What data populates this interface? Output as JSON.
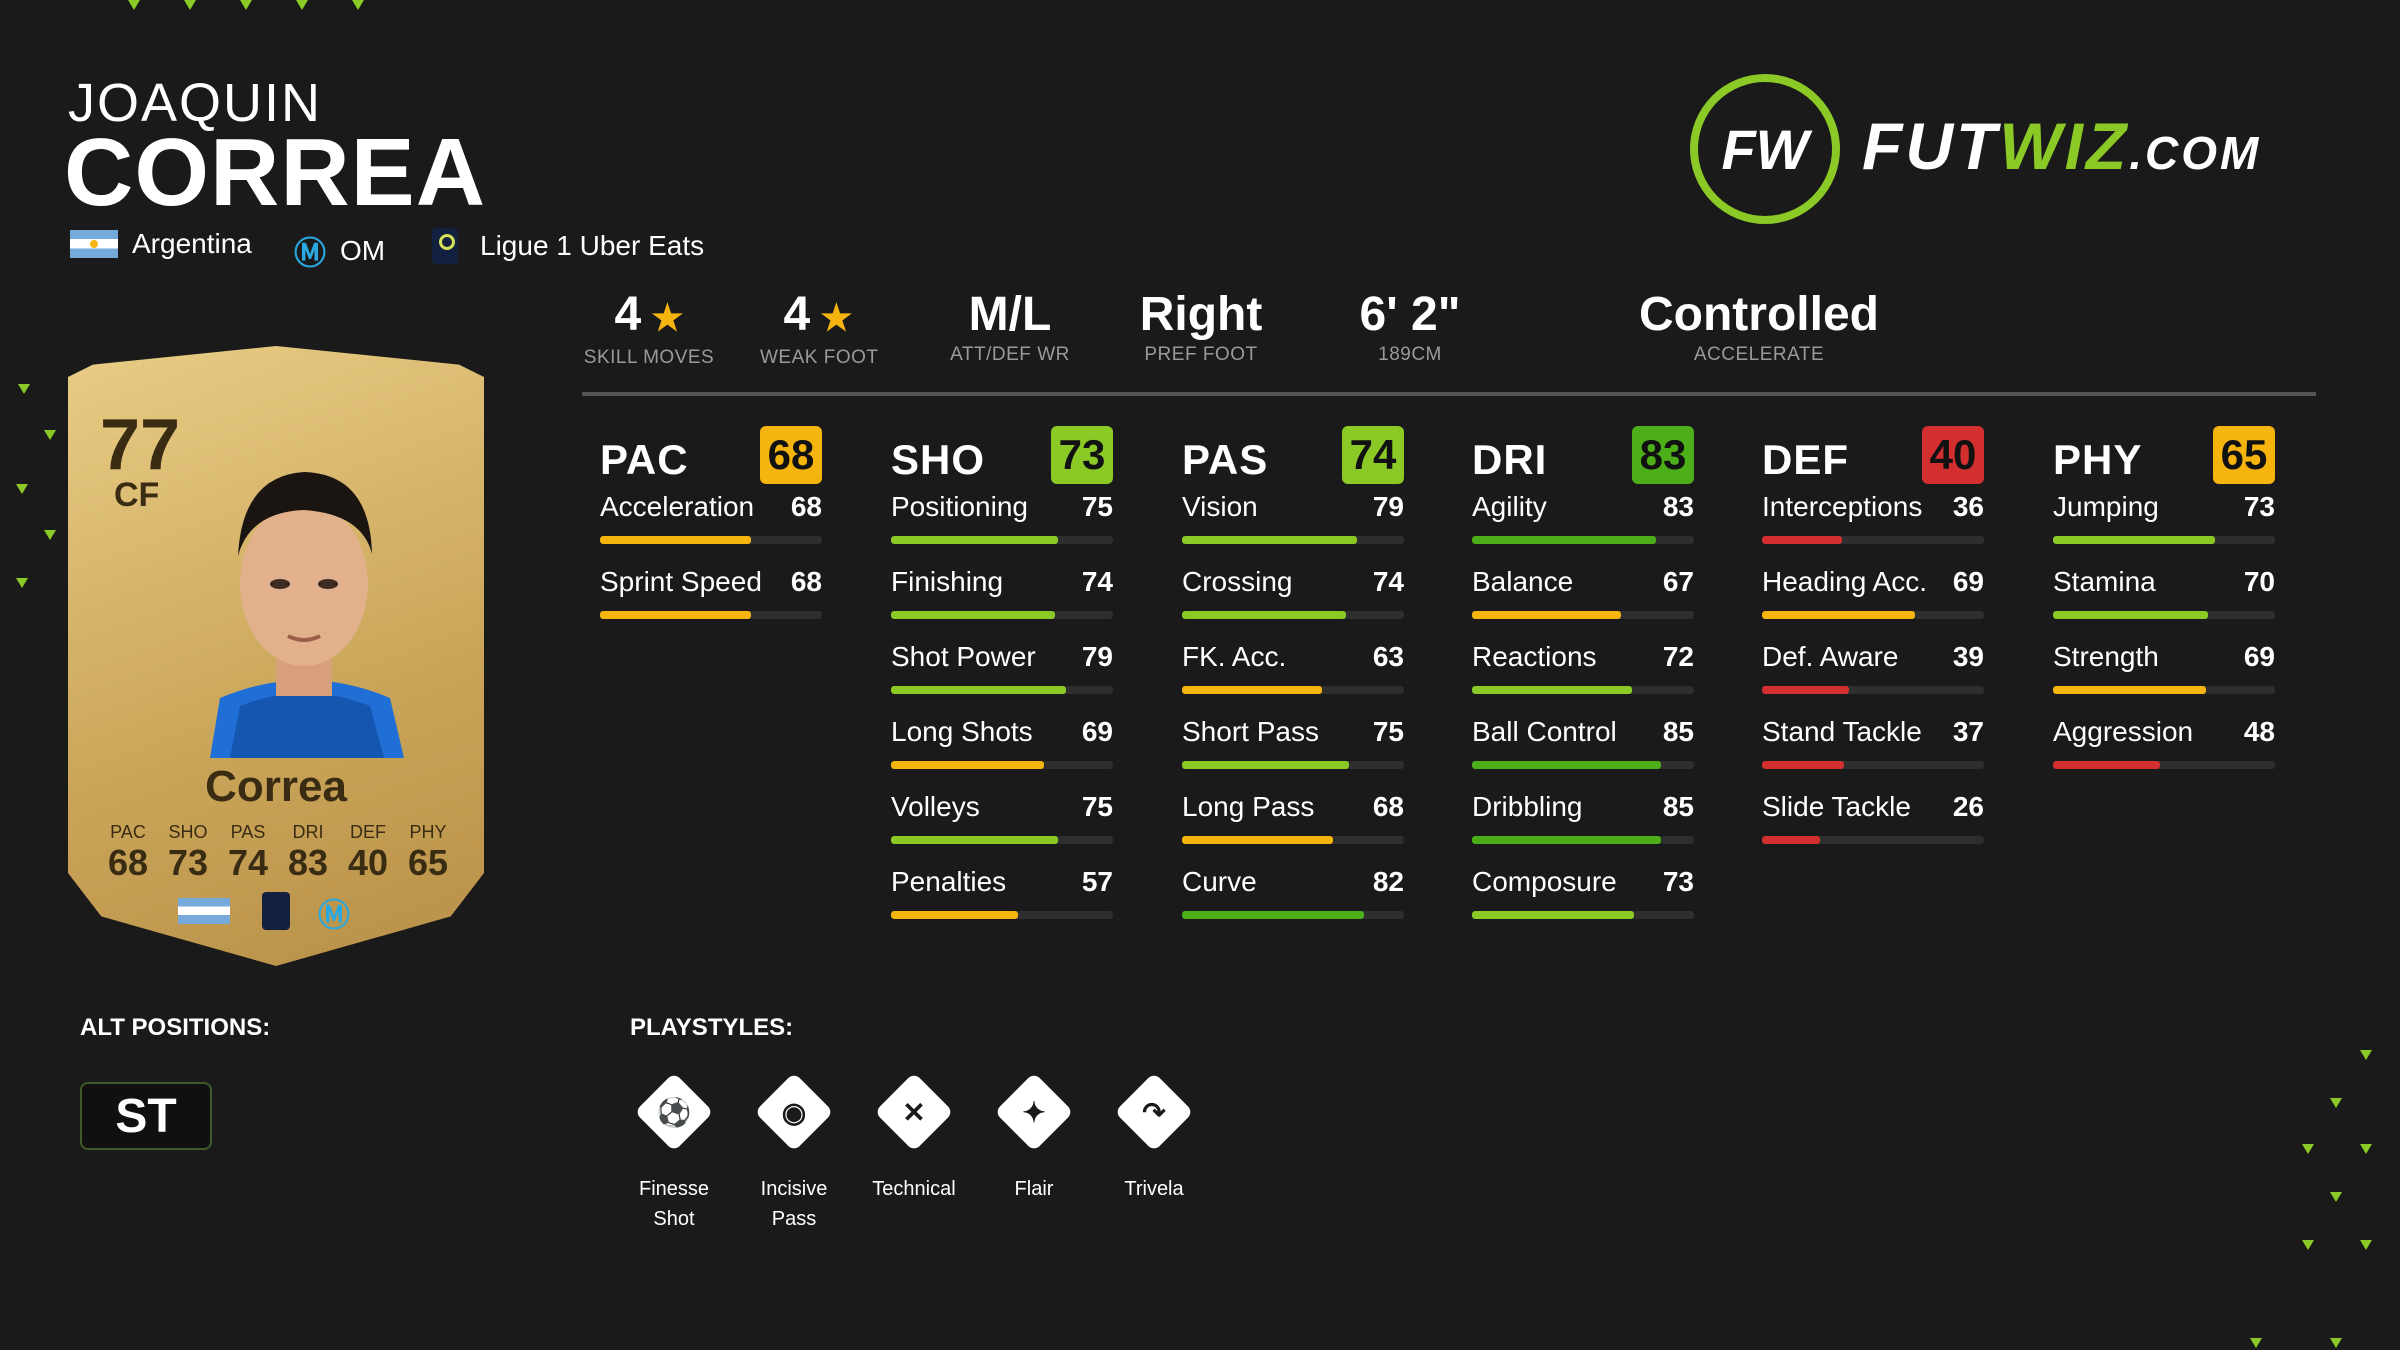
{
  "player": {
    "first_name": "JOAQUIN",
    "last_name": "CORREA",
    "nation": "Argentina",
    "club": "OM",
    "league": "Ligue 1 Uber Eats"
  },
  "logo": {
    "prefix": "FUT",
    "middle": "WIZ",
    "suffix": ".COM",
    "ring": "FW"
  },
  "info": [
    {
      "value": "4",
      "star": true,
      "label": "SKILL MOVES"
    },
    {
      "value": "4",
      "star": true,
      "label": "WEAK FOOT"
    },
    {
      "value": "M/L",
      "star": false,
      "label": "ATT/DEF WR"
    },
    {
      "value": "Right",
      "star": false,
      "label": "PREF FOOT"
    },
    {
      "value": "6' 2\"",
      "star": false,
      "label": "189CM"
    },
    {
      "value": "Controlled",
      "star": false,
      "label": "ACCELERATE"
    }
  ],
  "colors": {
    "green": "#8ac926",
    "darkgreen": "#4caf1a",
    "yellow": "#f6b40e",
    "red": "#d32f2f",
    "gold": "#e9cd86"
  },
  "stats": [
    {
      "name": "PAC",
      "value": 68,
      "items": [
        [
          "Acceleration",
          68
        ],
        [
          "Sprint Speed",
          68
        ]
      ]
    },
    {
      "name": "SHO",
      "value": 73,
      "items": [
        [
          "Positioning",
          75
        ],
        [
          "Finishing",
          74
        ],
        [
          "Shot Power",
          79
        ],
        [
          "Long Shots",
          69
        ],
        [
          "Volleys",
          75
        ],
        [
          "Penalties",
          57
        ]
      ]
    },
    {
      "name": "PAS",
      "value": 74,
      "items": [
        [
          "Vision",
          79
        ],
        [
          "Crossing",
          74
        ],
        [
          "FK. Acc.",
          63
        ],
        [
          "Short Pass",
          75
        ],
        [
          "Long Pass",
          68
        ],
        [
          "Curve",
          82
        ]
      ]
    },
    {
      "name": "DRI",
      "value": 83,
      "items": [
        [
          "Agility",
          83
        ],
        [
          "Balance",
          67
        ],
        [
          "Reactions",
          72
        ],
        [
          "Ball Control",
          85
        ],
        [
          "Dribbling",
          85
        ],
        [
          "Composure",
          73
        ]
      ]
    },
    {
      "name": "DEF",
      "value": 40,
      "items": [
        [
          "Interceptions",
          36
        ],
        [
          "Heading Acc.",
          69
        ],
        [
          "Def. Aware",
          39
        ],
        [
          "Stand Tackle",
          37
        ],
        [
          "Slide Tackle",
          26
        ]
      ]
    },
    {
      "name": "PHY",
      "value": 65,
      "items": [
        [
          "Jumping",
          73
        ],
        [
          "Stamina",
          70
        ],
        [
          "Strength",
          69
        ],
        [
          "Aggression",
          48
        ]
      ]
    }
  ],
  "card": {
    "rating": "77",
    "position": "CF",
    "name": "Correa",
    "labels": [
      "PAC",
      "SHO",
      "PAS",
      "DRI",
      "DEF",
      "PHY"
    ],
    "values": [
      "68",
      "73",
      "74",
      "83",
      "40",
      "65"
    ]
  },
  "alt_positions": {
    "title": "ALT POSITIONS:",
    "items": [
      "ST"
    ]
  },
  "playstyles": {
    "title": "PLAYSTYLES:",
    "items": [
      {
        "label": "Finesse Shot",
        "icon": "finesse-shot-icon",
        "glyph": "⚽"
      },
      {
        "label": "Incisive Pass",
        "icon": "incisive-pass-icon",
        "glyph": "◉"
      },
      {
        "label": "Technical",
        "icon": "technical-icon",
        "glyph": "✕"
      },
      {
        "label": "Flair",
        "icon": "flair-icon",
        "glyph": "✦"
      },
      {
        "label": "Trivela",
        "icon": "trivela-icon",
        "glyph": "↷"
      }
    ]
  }
}
